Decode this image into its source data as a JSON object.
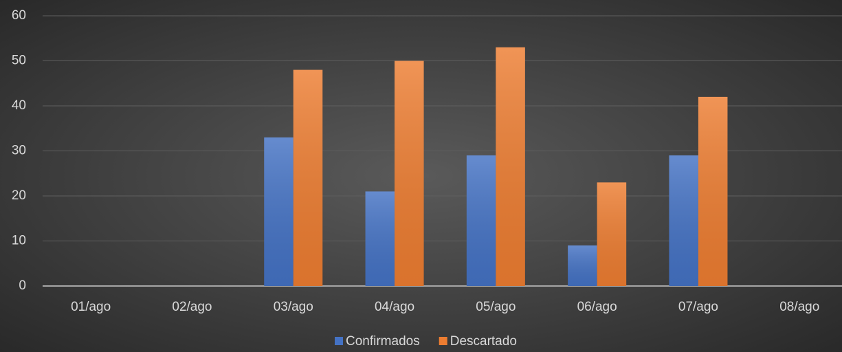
{
  "chart_data": {
    "type": "bar",
    "categories": [
      "01/ago",
      "02/ago",
      "03/ago",
      "04/ago",
      "05/ago",
      "06/ago",
      "07/ago",
      "08/ago"
    ],
    "series": [
      {
        "name": "Confirmados",
        "color": "#4472c4",
        "values": [
          null,
          null,
          33,
          21,
          29,
          9,
          29,
          null
        ]
      },
      {
        "name": "Descartado",
        "color": "#ed7d31",
        "values": [
          null,
          null,
          48,
          50,
          53,
          23,
          42,
          null
        ]
      }
    ],
    "ylim": [
      0,
      60
    ],
    "yticks": [
      0,
      10,
      20,
      30,
      40,
      50,
      60
    ],
    "grid": true,
    "legend": "bottom"
  }
}
